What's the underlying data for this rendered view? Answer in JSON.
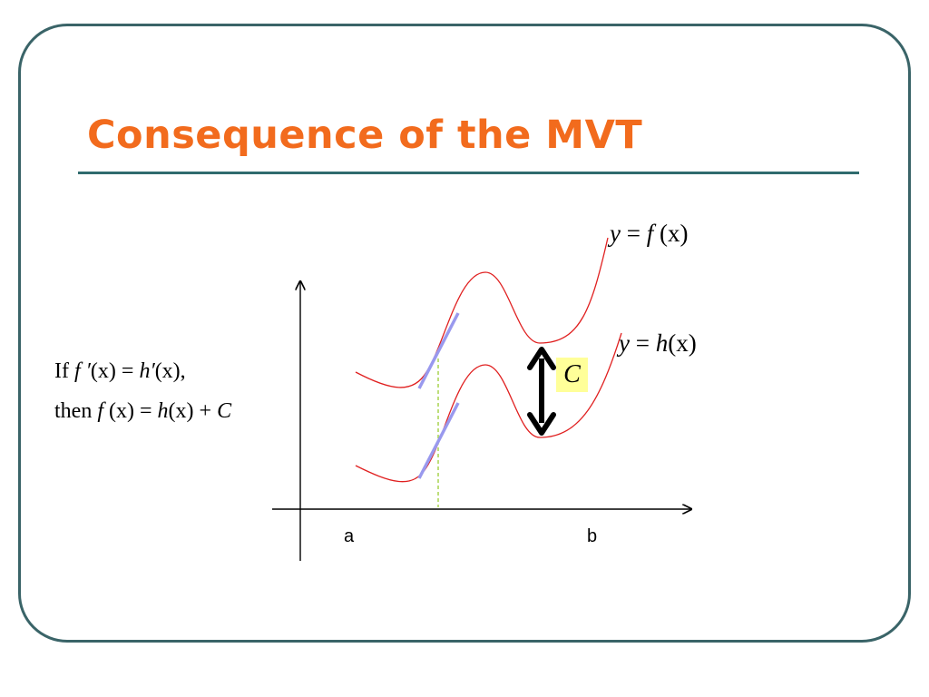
{
  "slide": {
    "title": "Consequence of the MVT"
  },
  "diagram": {
    "curve_f_label": {
      "lhs": "y",
      "eq": " = ",
      "fn": "f",
      "arg": " (x)"
    },
    "curve_h_label": {
      "lhs": "y",
      "eq": " = ",
      "fn": "h",
      "arg": "(x)"
    },
    "constant_label": "C",
    "x_tick_a": "a",
    "x_tick_b": "b",
    "colors": {
      "curve": "#e02020",
      "tangent": "#9999ee",
      "guide": "#9acd32",
      "arrow": "#000000",
      "highlight": "#ffff99"
    }
  },
  "statement": {
    "line1": {
      "if": "If ",
      "f": "f ′",
      "x1": "(x)",
      "eq": " = ",
      "h": "h′",
      "x2": "(x),",
      "full": "If f ′(x) = h′(x),"
    },
    "line2": {
      "then": "then ",
      "f": "f ",
      "x1": "(x)",
      "eq": " = ",
      "h": "h",
      "x2": "(x)",
      "plus": " + ",
      "c": "C"
    }
  }
}
